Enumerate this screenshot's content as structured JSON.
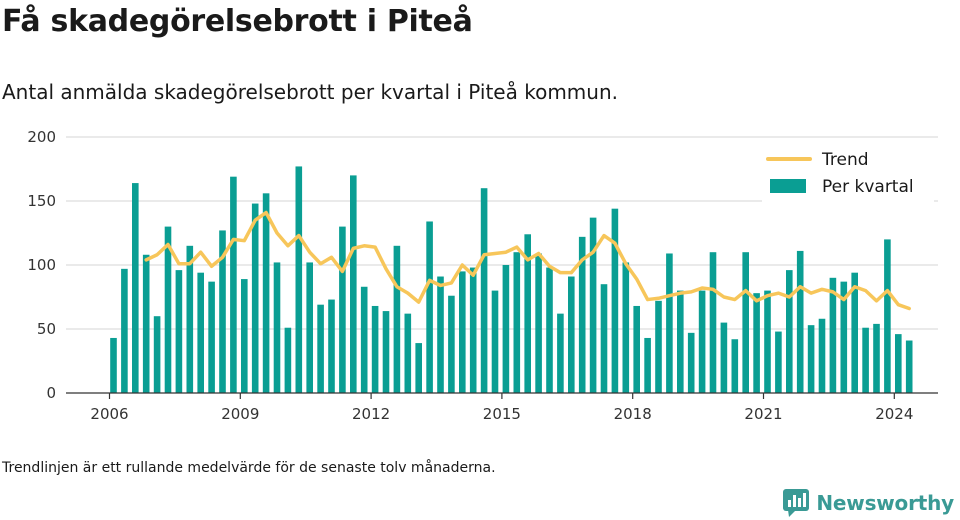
{
  "header": {
    "title": "Få skadegörelsebrott i Piteå",
    "subtitle": "Antal anmälda skadegörelsebrott per kvartal i Piteå kommun."
  },
  "footer": {
    "note": "Trendlinjen är ett rullande medelvärde för de senaste tolv månaderna.",
    "brand": "Newsworthy"
  },
  "colors": {
    "bar": "#0a9e93",
    "trend": "#f7c65a",
    "grid": "#dddddd",
    "brand": "#3a9a95"
  },
  "chart_data": {
    "type": "bar",
    "title": "",
    "xlabel": "",
    "ylabel": "",
    "ylim": [
      0,
      200
    ],
    "yticks": [
      0,
      50,
      100,
      150,
      200
    ],
    "xticks": [
      "2006",
      "2009",
      "2012",
      "2015",
      "2018",
      "2021",
      "2024"
    ],
    "grid": true,
    "legend_position": "top-right",
    "start_year": 2006,
    "series": [
      {
        "name": "Per kvartal",
        "type": "bar",
        "values": [
          43,
          97,
          164,
          108,
          60,
          130,
          96,
          115,
          94,
          87,
          127,
          169,
          89,
          148,
          156,
          102,
          51,
          177,
          102,
          69,
          73,
          130,
          170,
          83,
          68,
          64,
          115,
          62,
          39,
          134,
          91,
          76,
          95,
          98,
          160,
          80,
          100,
          110,
          124,
          109,
          98,
          62,
          91,
          122,
          137,
          85,
          144,
          102,
          68,
          43,
          72,
          109,
          80,
          47,
          80,
          110,
          55,
          42,
          110,
          78,
          80,
          48,
          96,
          111,
          53,
          58,
          90,
          87,
          94,
          51,
          54,
          120,
          46,
          41
        ]
      },
      {
        "name": "Trend",
        "type": "line",
        "values": [
          null,
          null,
          null,
          104,
          108,
          116,
          101,
          101,
          110,
          99,
          106,
          120,
          119,
          135,
          141,
          125,
          115,
          123,
          110,
          101,
          106,
          95,
          113,
          115,
          114,
          97,
          83,
          78,
          71,
          88,
          84,
          86,
          100,
          92,
          108,
          109,
          110,
          114,
          104,
          109,
          99,
          94,
          94,
          104,
          110,
          123,
          117,
          101,
          89,
          73,
          74,
          76,
          78,
          79,
          82,
          81,
          75,
          73,
          80,
          72,
          76,
          78,
          75,
          83,
          78,
          81,
          79,
          73,
          83,
          80,
          72,
          80,
          69,
          66
        ]
      }
    ]
  }
}
